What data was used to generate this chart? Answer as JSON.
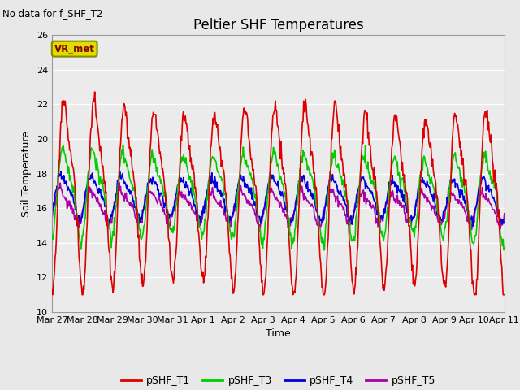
{
  "title": "Peltier SHF Temperatures",
  "no_data_text": "No data for f_SHF_T2",
  "xlabel": "Time",
  "ylabel": "Soil Temperature",
  "ylim": [
    10,
    26
  ],
  "yticks": [
    10,
    12,
    14,
    16,
    18,
    20,
    22,
    24,
    26
  ],
  "background_color": "#e8e8e8",
  "plot_bg_color": "#ebebeb",
  "vr_met_label": "VR_met",
  "vr_met_color": "#dddd00",
  "vr_met_text_color": "#8b0000",
  "series": {
    "pSHF_T1": {
      "color": "#dd0000",
      "linewidth": 1.2
    },
    "pSHF_T3": {
      "color": "#00cc00",
      "linewidth": 1.2
    },
    "pSHF_T4": {
      "color": "#0000dd",
      "linewidth": 1.2
    },
    "pSHF_T5": {
      "color": "#aa00aa",
      "linewidth": 1.2
    }
  },
  "x_tick_labels": [
    "Mar 27",
    "Mar 28",
    "Mar 29",
    "Mar 30",
    "Mar 31",
    "Apr 1",
    "Apr 2",
    "Apr 3",
    "Apr 4",
    "Apr 5",
    "Apr 6",
    "Apr 7",
    "Apr 8",
    "Apr 9",
    "Apr 10",
    "Apr 11"
  ],
  "num_days": 15,
  "points_per_day": 48,
  "figwidth": 6.4,
  "figheight": 4.8,
  "dpi": 100
}
